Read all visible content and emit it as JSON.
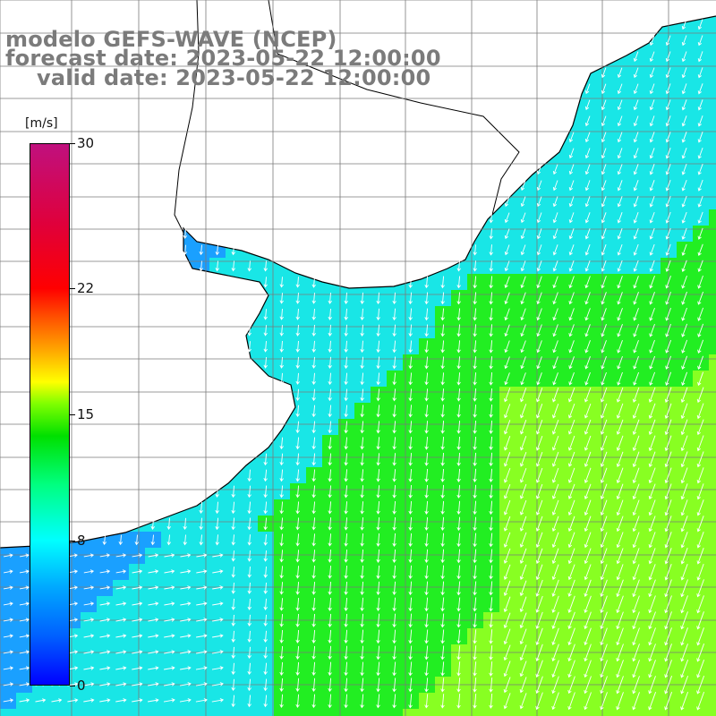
{
  "title": {
    "line1": "modelo GEFS-WAVE (NCEP)",
    "line2": "forecast date: 2023-05-22 12:00:00",
    "line3": "valid date: 2023-05-22 12:00:00"
  },
  "colorbar": {
    "unit": "[m/s]",
    "ticks": [
      {
        "label": "30",
        "value": 30
      },
      {
        "label": "22",
        "value": 22
      },
      {
        "label": "15",
        "value": 15
      },
      {
        "label": "8",
        "value": 8
      },
      {
        "label": "0",
        "value": 0
      }
    ],
    "colors": [
      "#0000ff",
      "#00a8ff",
      "#00ffff",
      "#00e000",
      "#ffff00",
      "#ff0000",
      "#c0107e"
    ]
  },
  "map": {
    "field": "wind speed and direction",
    "ocean_colors": {
      "low": "#0b3cf0",
      "mid": "#1aa0ff",
      "cyan": "#19e6e6",
      "green": "#22ee22",
      "lime": "#88ff22"
    },
    "land_color": "#ffffff",
    "grid_color": "#7a7a7a"
  }
}
